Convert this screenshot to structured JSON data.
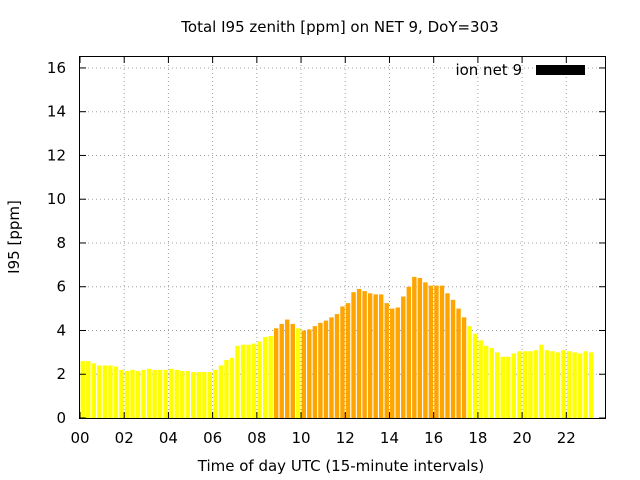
{
  "chart_data": {
    "type": "bar",
    "title": "Total I95 zenith [ppm] on NET 9, DoY=303",
    "xlabel": "Time of day UTC (15-minute intervals)",
    "ylabel": "I95 [ppm]",
    "xlim": [
      0,
      23.75
    ],
    "ylim": [
      0,
      16.5
    ],
    "x_ticks": [
      "00",
      "02",
      "04",
      "06",
      "08",
      "10",
      "12",
      "14",
      "16",
      "18",
      "20",
      "22"
    ],
    "x_tick_values": [
      0,
      2,
      4,
      6,
      8,
      10,
      12,
      14,
      16,
      18,
      20,
      22
    ],
    "y_ticks": [
      "0",
      "2",
      "4",
      "6",
      "8",
      "10",
      "12",
      "14",
      "16"
    ],
    "y_tick_values": [
      0,
      2,
      4,
      6,
      8,
      10,
      12,
      14,
      16
    ],
    "grid": true,
    "legend": {
      "label": "ion net 9",
      "position": "top-right",
      "color": "#000000"
    },
    "bar_width_hours": 0.2,
    "colors": {
      "low": "#ffff00",
      "high": "#ffa500"
    },
    "interval_hours": 0.25,
    "series": [
      {
        "values": [
          2.6,
          2.6,
          2.5,
          2.4,
          2.4,
          2.4,
          2.35,
          2.2,
          2.15,
          2.2,
          2.15,
          2.2,
          2.25,
          2.2,
          2.2,
          2.2,
          2.25,
          2.2,
          2.15,
          2.15,
          2.1,
          2.1,
          2.1,
          2.1,
          2.2,
          2.4,
          2.65,
          2.75,
          3.3,
          3.35,
          3.35,
          3.4,
          3.5,
          3.7,
          3.75,
          4.1,
          4.3,
          4.5,
          4.3,
          4.1,
          4.0,
          4.05,
          4.2,
          4.35,
          4.45,
          4.6,
          4.75,
          5.1,
          5.25,
          5.75,
          5.9,
          5.8,
          5.7,
          5.65,
          5.65,
          5.25,
          5.0,
          5.05,
          5.55,
          6.0,
          6.45,
          6.4,
          6.2,
          6.05,
          6.05,
          6.05,
          5.7,
          5.4,
          5.0,
          4.6,
          4.2,
          3.85,
          3.55,
          3.3,
          3.2,
          3.0,
          2.8,
          2.8,
          2.95,
          3.05,
          3.05,
          3.05,
          3.1,
          3.35,
          3.1,
          3.05,
          3.0,
          3.1,
          3.05,
          3.0,
          2.95,
          3.05,
          3.0
        ],
        "levels": [
          "low",
          "low",
          "low",
          "low",
          "low",
          "low",
          "low",
          "low",
          "low",
          "low",
          "low",
          "low",
          "low",
          "low",
          "low",
          "low",
          "low",
          "low",
          "low",
          "low",
          "low",
          "low",
          "low",
          "low",
          "low",
          "low",
          "low",
          "low",
          "low",
          "low",
          "low",
          "low",
          "low",
          "low",
          "low",
          "high",
          "high",
          "high",
          "high",
          "low",
          "high",
          "high",
          "high",
          "high",
          "high",
          "high",
          "high",
          "high",
          "high",
          "high",
          "high",
          "high",
          "high",
          "high",
          "high",
          "high",
          "high",
          "high",
          "high",
          "high",
          "high",
          "high",
          "high",
          "high",
          "high",
          "high",
          "high",
          "high",
          "high",
          "high",
          "low",
          "low",
          "low",
          "low",
          "low",
          "low",
          "low",
          "low",
          "low",
          "low",
          "low",
          "low",
          "low",
          "low",
          "low",
          "low",
          "low",
          "low",
          "low",
          "low",
          "low",
          "low",
          "low"
        ]
      }
    ]
  }
}
